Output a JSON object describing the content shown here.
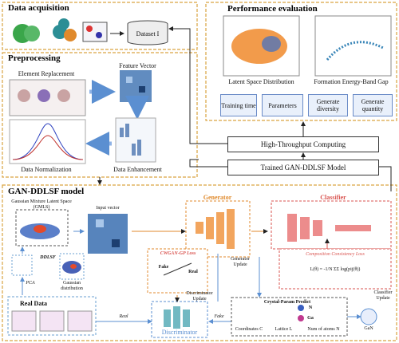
{
  "data_acquisition": {
    "title": "Data acquisition",
    "dataset": "Dataset I"
  },
  "preprocessing": {
    "title": "Preprocessing",
    "element_replacement": "Element Replacement",
    "feature_vector": "Feature Vector",
    "data_normalization": "Data Normalization",
    "data_enhancement": "Data Enhancement"
  },
  "performance_evaluation": {
    "title": "Performance evaluation",
    "plots": [
      "Latent Space Distribution",
      "Formation Energy-Band Gap"
    ],
    "metrics": [
      "Training time",
      "Parameters",
      "Generate diversity",
      "Generate quantity"
    ]
  },
  "pipeline": [
    "High-Throughput Computing",
    "Trained GAN-DDLSF Model"
  ],
  "model": {
    "title": "GAN-DDLSF model",
    "gmls": "Gaussian Mixture Latent Space (GMLS)",
    "input_vector": "Input vector",
    "generator": "Generator",
    "classifier": "Classifier",
    "cwgan_loss": "CWGAN-GP Loss",
    "fake": "Fake",
    "real": "Real",
    "generator_update": "Generator Update",
    "composition_loss": "Composition Consistency Loss",
    "loss_formula": "L(θ) = -1/N ΣΣ log(pij(θ))",
    "classifier_update": "Classifier Update",
    "ddlsf": "DDLSF",
    "pca": "PCA",
    "gaussian": "Gaussian distribution",
    "discriminator_update": "Discriminator Update",
    "real_data": "Real Data",
    "real_arrow": "Real",
    "fake_arrow": "Fake",
    "discriminator": "Discriminator",
    "crystal_predict": "Crystal-Param Predict",
    "elements": [
      "N",
      "Ga"
    ],
    "product": "GaN",
    "params": [
      "Coordinates C",
      "Lattice L",
      "Num of atoms N"
    ]
  }
}
